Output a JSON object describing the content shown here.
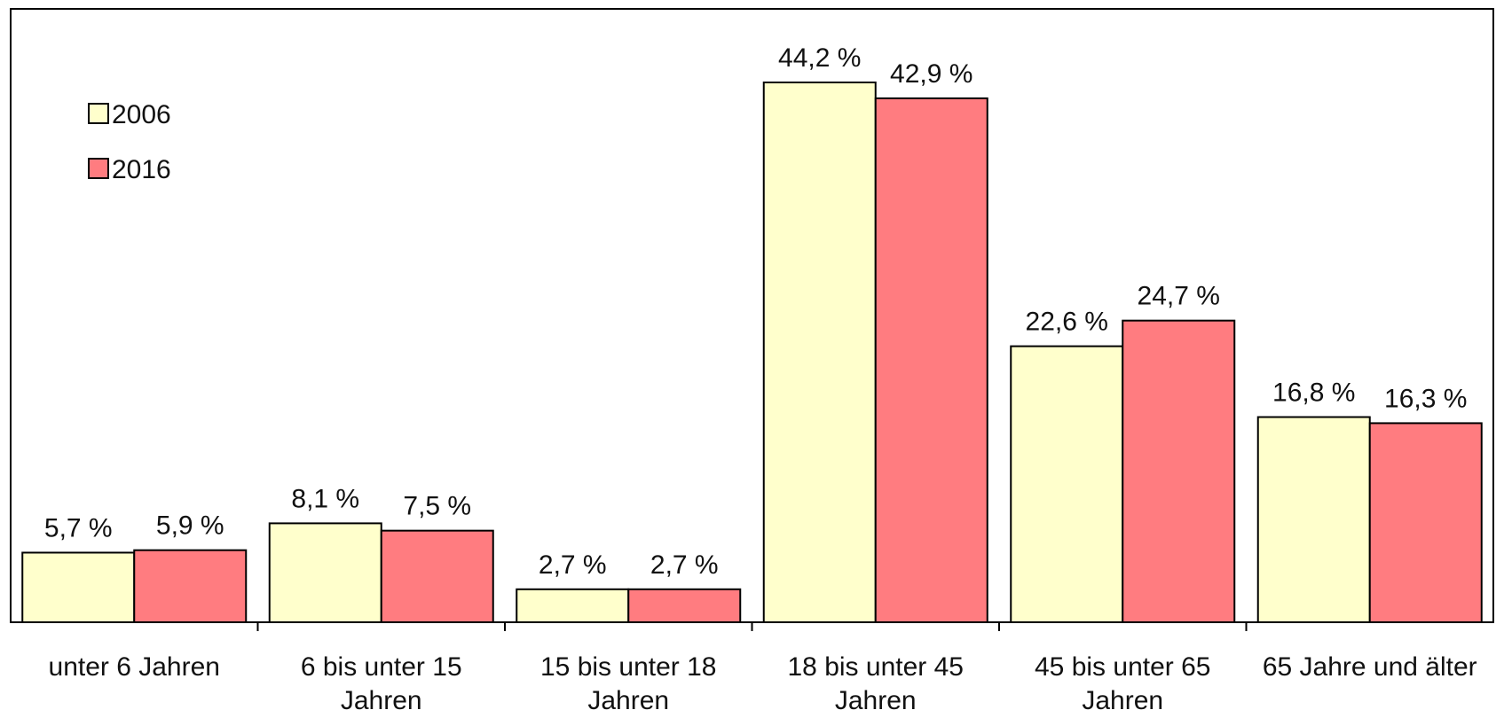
{
  "chart_data": {
    "type": "bar",
    "categories": [
      [
        "unter 6 Jahren"
      ],
      [
        "6 bis unter 15",
        "Jahren"
      ],
      [
        "15 bis unter 18",
        "Jahren"
      ],
      [
        "18 bis unter 45",
        "Jahren"
      ],
      [
        "45 bis unter 65",
        "Jahren"
      ],
      [
        "65 Jahre und älter"
      ]
    ],
    "series": [
      {
        "name": "2006",
        "color": "#ffffcc",
        "values": [
          5.7,
          8.1,
          2.7,
          44.2,
          22.6,
          16.8
        ],
        "labels": [
          "5,7 %",
          "8,1 %",
          "2,7 %",
          "44,2 %",
          "22,6 %",
          "16,8 %"
        ]
      },
      {
        "name": "2016",
        "color": "#ff7c80",
        "values": [
          5.9,
          7.5,
          2.7,
          42.9,
          24.7,
          16.3
        ],
        "labels": [
          "5,9 %",
          "7,5 %",
          "2,7 %",
          "42,9 %",
          "24,7 %",
          "16,3 %"
        ]
      }
    ],
    "ylim": [
      0,
      50
    ],
    "legend": "top-left",
    "grid": false
  }
}
